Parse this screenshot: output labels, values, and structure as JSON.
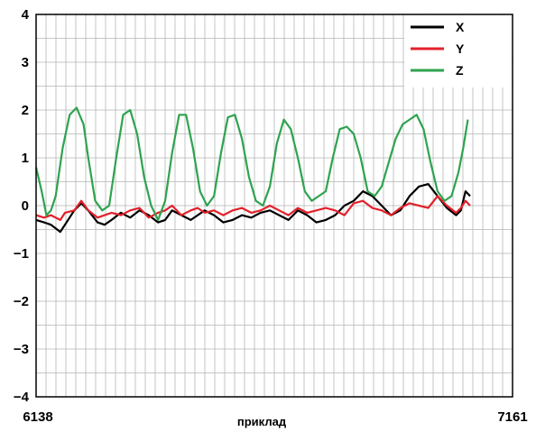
{
  "chart_data": {
    "type": "line",
    "title": "",
    "xlabel": "приклад",
    "ylabel": "",
    "xlim": [
      6138,
      7161
    ],
    "ylim": [
      -4,
      4
    ],
    "x_tick_labels": [
      "6138",
      "7161"
    ],
    "y_tick_labels": [
      "4",
      "3",
      "2",
      "1",
      "0",
      "−1",
      "−2",
      "−3",
      "−4"
    ],
    "grid": true,
    "legend_position": "top-right",
    "series": [
      {
        "name": "X",
        "color": "#000000",
        "x": [
          6138,
          6155,
          6170,
          6190,
          6200,
          6220,
          6235,
          6250,
          6270,
          6285,
          6300,
          6320,
          6340,
          6360,
          6380,
          6400,
          6415,
          6430,
          6450,
          6470,
          6485,
          6500,
          6520,
          6540,
          6560,
          6580,
          6600,
          6620,
          6640,
          6660,
          6680,
          6700,
          6720,
          6740,
          6760,
          6780,
          6800,
          6820,
          6840,
          6860,
          6880,
          6900,
          6920,
          6940,
          6960,
          6980,
          7000,
          7020,
          7040,
          7050,
          7060,
          7070
        ],
        "values": [
          -0.3,
          -0.35,
          -0.4,
          -0.55,
          -0.4,
          -0.1,
          0.05,
          -0.1,
          -0.35,
          -0.4,
          -0.3,
          -0.15,
          -0.25,
          -0.1,
          -0.2,
          -0.35,
          -0.3,
          -0.1,
          -0.2,
          -0.3,
          -0.2,
          -0.1,
          -0.2,
          -0.35,
          -0.3,
          -0.2,
          -0.25,
          -0.15,
          -0.1,
          -0.2,
          -0.3,
          -0.1,
          -0.2,
          -0.35,
          -0.3,
          -0.2,
          0.0,
          0.1,
          0.3,
          0.2,
          0.0,
          -0.2,
          -0.1,
          0.2,
          0.4,
          0.45,
          0.2,
          -0.05,
          -0.2,
          -0.1,
          0.3,
          0.2
        ]
      },
      {
        "name": "Y",
        "color": "#e3202a",
        "x": [
          6138,
          6155,
          6170,
          6190,
          6200,
          6220,
          6235,
          6250,
          6270,
          6285,
          6300,
          6320,
          6340,
          6360,
          6380,
          6400,
          6415,
          6430,
          6450,
          6470,
          6485,
          6500,
          6520,
          6540,
          6560,
          6580,
          6600,
          6620,
          6640,
          6660,
          6680,
          6700,
          6720,
          6740,
          6760,
          6780,
          6800,
          6820,
          6840,
          6860,
          6880,
          6900,
          6920,
          6940,
          6960,
          6980,
          7000,
          7020,
          7040,
          7050,
          7060,
          7070
        ],
        "values": [
          -0.2,
          -0.25,
          -0.2,
          -0.3,
          -0.15,
          -0.1,
          0.1,
          -0.1,
          -0.25,
          -0.2,
          -0.15,
          -0.2,
          -0.1,
          -0.05,
          -0.25,
          -0.15,
          -0.1,
          0.0,
          -0.2,
          -0.1,
          -0.05,
          -0.15,
          -0.1,
          -0.2,
          -0.1,
          -0.05,
          -0.15,
          -0.1,
          0.0,
          -0.1,
          -0.2,
          -0.05,
          -0.15,
          -0.1,
          -0.05,
          -0.1,
          -0.2,
          0.05,
          0.1,
          -0.05,
          -0.1,
          -0.2,
          -0.05,
          0.05,
          0.0,
          -0.05,
          0.2,
          0.0,
          -0.15,
          -0.05,
          0.1,
          0.0
        ]
      },
      {
        "name": "Z",
        "color": "#2ea34f",
        "x": [
          6138,
          6150,
          6160,
          6170,
          6180,
          6195,
          6210,
          6225,
          6240,
          6250,
          6265,
          6280,
          6295,
          6310,
          6325,
          6340,
          6355,
          6370,
          6385,
          6400,
          6415,
          6430,
          6445,
          6460,
          6475,
          6490,
          6505,
          6520,
          6535,
          6550,
          6565,
          6580,
          6595,
          6610,
          6625,
          6640,
          6655,
          6670,
          6685,
          6700,
          6715,
          6730,
          6745,
          6760,
          6775,
          6790,
          6805,
          6820,
          6835,
          6850,
          6865,
          6880,
          6895,
          6910,
          6925,
          6940,
          6955,
          6970,
          6985,
          7000,
          7015,
          7030,
          7045,
          7055,
          7065
        ],
        "values": [
          0.8,
          0.3,
          -0.2,
          -0.1,
          0.2,
          1.2,
          1.9,
          2.05,
          1.7,
          1.0,
          0.1,
          -0.1,
          0.0,
          1.0,
          1.9,
          2.0,
          1.5,
          0.6,
          0.0,
          -0.3,
          0.1,
          1.1,
          1.9,
          1.9,
          1.2,
          0.3,
          0.0,
          0.2,
          1.1,
          1.85,
          1.9,
          1.4,
          0.6,
          0.1,
          0.0,
          0.4,
          1.3,
          1.8,
          1.6,
          1.0,
          0.3,
          0.1,
          0.2,
          0.3,
          1.0,
          1.6,
          1.65,
          1.5,
          1.0,
          0.3,
          0.2,
          0.4,
          0.9,
          1.4,
          1.7,
          1.8,
          1.9,
          1.6,
          0.9,
          0.3,
          0.1,
          0.2,
          0.7,
          1.2,
          1.8
        ]
      }
    ]
  }
}
